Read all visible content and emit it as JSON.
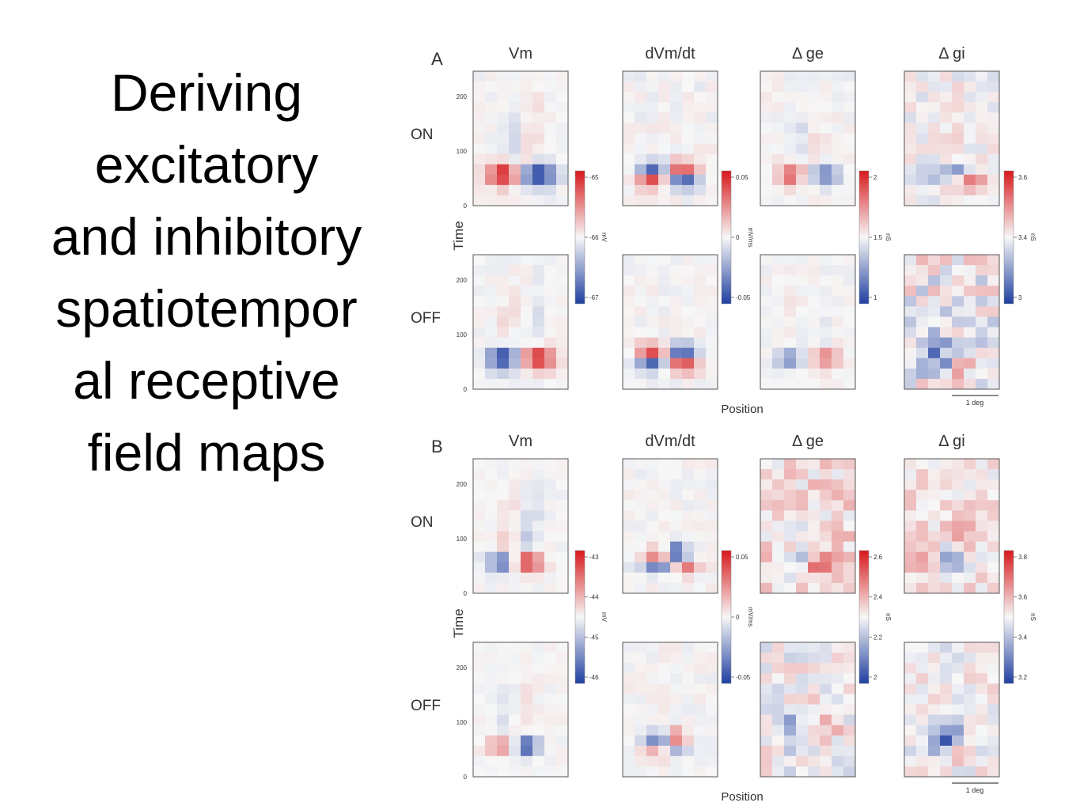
{
  "slide": {
    "title_lines": [
      "Deriving",
      "excitatory",
      "and inhibitory",
      "spatiotempor",
      "al receptive",
      "field maps"
    ]
  },
  "figure": {
    "x_axis_label": "Position",
    "y_axis_label": "Time",
    "scale_bar_label": "1 deg",
    "y_ticks": [
      "0",
      "100",
      "200"
    ],
    "colors": {
      "positive": "#d7191c",
      "neutral": "#f7f7f7",
      "negative": "#1f3fa0",
      "frame": "#555555"
    },
    "panels": [
      {
        "panel_label": "A",
        "column_titles": [
          "Vm",
          "dVm/dt",
          "Δ ge",
          "Δ gi"
        ],
        "row_labels": [
          "ON",
          "OFF"
        ],
        "colorbars": [
          {
            "unit": "mV",
            "ticks": [
              "-65",
              "-66",
              "-67"
            ]
          },
          {
            "unit": "mV/ms",
            "ticks": [
              "0.05",
              "0",
              "-0.05"
            ]
          },
          {
            "unit": "nS",
            "ticks": [
              "2",
              "1.5",
              "1"
            ]
          },
          {
            "unit": "nS",
            "ticks": [
              "3.6",
              "3.4",
              "3"
            ]
          }
        ]
      },
      {
        "panel_label": "B",
        "column_titles": [
          "Vm",
          "dVm/dt",
          "Δ ge",
          "Δ gi"
        ],
        "row_labels": [
          "ON",
          "OFF"
        ],
        "colorbars": [
          {
            "unit": "mV",
            "ticks": [
              "-43",
              "-44",
              "-45",
              "-46"
            ]
          },
          {
            "unit": "mV/ms",
            "ticks": [
              "0.05",
              "0",
              "-0.05"
            ]
          },
          {
            "unit": "nS",
            "ticks": [
              "2.6",
              "2.4",
              "2.2",
              "2"
            ]
          },
          {
            "unit": "nS",
            "ticks": [
              "3.8",
              "3.6",
              "3.4",
              "3.2"
            ]
          }
        ]
      }
    ]
  }
}
